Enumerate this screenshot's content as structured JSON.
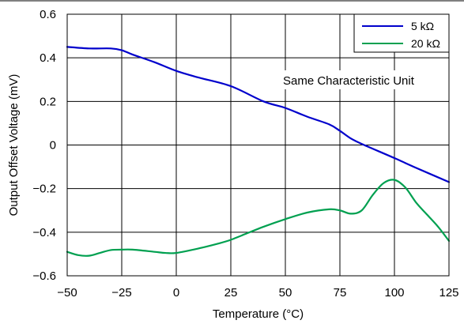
{
  "chart_data": {
    "type": "line",
    "title": "",
    "xlabel": "Temperature (°C)",
    "ylabel": "Output Offset Voltage (mV)",
    "xlim": [
      -50,
      125
    ],
    "ylim": [
      -0.6,
      0.6
    ],
    "x_ticks": [
      -50,
      -25,
      0,
      25,
      50,
      75,
      100,
      125
    ],
    "x_tick_labels": [
      "−50",
      "−25",
      "0",
      "25",
      "50",
      "75",
      "100",
      "125"
    ],
    "y_ticks": [
      0.6,
      0.4,
      0.2,
      0,
      -0.2,
      -0.4,
      -0.6
    ],
    "y_tick_labels": [
      "0.6",
      "0.4",
      "0.2",
      "0",
      "−0.2",
      "−0.4",
      "−0.6"
    ],
    "grid": true,
    "legend_position": "top-right",
    "annotation": "Same Characteristic Unit",
    "series": [
      {
        "name": "5 kΩ",
        "color": "#0000cc",
        "x": [
          -50,
          -40,
          -30,
          -25,
          -20,
          -10,
          0,
          10,
          25,
          40,
          50,
          60,
          70,
          75,
          80,
          85,
          100,
          110,
          125
        ],
        "y": [
          0.45,
          0.443,
          0.443,
          0.435,
          0.415,
          0.38,
          0.34,
          0.31,
          0.27,
          0.2,
          0.17,
          0.13,
          0.095,
          0.065,
          0.03,
          0.005,
          -0.06,
          -0.105,
          -0.17
        ]
      },
      {
        "name": "20 kΩ",
        "color": "#00a050",
        "x": [
          -50,
          -45,
          -40,
          -35,
          -30,
          -25,
          -20,
          -10,
          -5,
          0,
          10,
          20,
          25,
          30,
          40,
          50,
          60,
          70,
          75,
          80,
          85,
          90,
          95,
          100,
          105,
          110,
          115,
          120,
          125
        ],
        "y": [
          -0.49,
          -0.505,
          -0.508,
          -0.495,
          -0.482,
          -0.48,
          -0.48,
          -0.49,
          -0.495,
          -0.495,
          -0.475,
          -0.45,
          -0.435,
          -0.415,
          -0.375,
          -0.34,
          -0.31,
          -0.295,
          -0.3,
          -0.315,
          -0.3,
          -0.23,
          -0.175,
          -0.16,
          -0.195,
          -0.265,
          -0.32,
          -0.375,
          -0.44
        ]
      }
    ]
  }
}
